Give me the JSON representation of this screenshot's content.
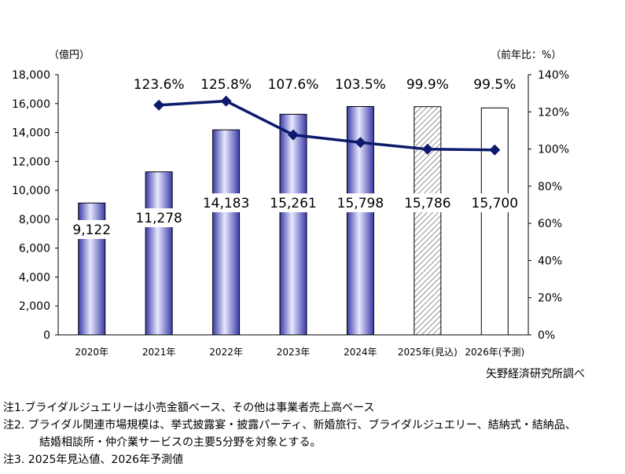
{
  "chart_data": {
    "type": "bar+line",
    "categories": [
      "2020年",
      "2021年",
      "2022年",
      "2023年",
      "2024年",
      "2025年(見込)",
      "2026年(予測)"
    ],
    "series": [
      {
        "type": "bar",
        "axis": "left",
        "values": [
          9122,
          11278,
          14183,
          15261,
          15798,
          15786,
          15700
        ],
        "labels": [
          "9,122",
          "11,278",
          "14,183",
          "15,261",
          "15,798",
          "15,786",
          "15,700"
        ],
        "styles": [
          "solid",
          "solid",
          "solid",
          "solid",
          "solid",
          "hatched",
          "hollow"
        ]
      },
      {
        "type": "line",
        "axis": "right",
        "values": [
          null,
          123.6,
          125.8,
          107.6,
          103.5,
          99.9,
          99.5
        ],
        "labels": [
          "",
          "123.6%",
          "125.8%",
          "107.6%",
          "103.5%",
          "99.9%",
          "99.5%"
        ],
        "marker": "diamond"
      }
    ],
    "y_left": {
      "unit": "（億円）",
      "range": [
        0,
        18000
      ],
      "ticks": [
        "0",
        "2,000",
        "4,000",
        "6,000",
        "8,000",
        "10,000",
        "12,000",
        "14,000",
        "16,000",
        "18,000"
      ]
    },
    "y_right": {
      "unit": "（前年比：%）",
      "range": [
        0,
        140
      ],
      "ticks": [
        "0%",
        "20%",
        "40%",
        "60%",
        "80%",
        "100%",
        "120%",
        "140%"
      ]
    },
    "source": "矢野経済研究所調べ",
    "grid": false,
    "legend": "none",
    "colors": {
      "bar_top": "#3a3aa8",
      "bar_mid": "#e8e8ff",
      "line": "#0c1a6b",
      "axis": "#000000"
    }
  },
  "notes": [
    "注1.ブライダルジュエリーは小売金額ベース、その他は事業者売上高ベース",
    "注2. ブライダル関連市場規模は、挙式披露宴・披露パーティ、新婚旅行、ブライダルジュエリー、結納式・結納品、",
    "結婚相談所・仲介業サービスの主要5分野を対象とする。",
    "注3. 2025年見込値、2026年予測値"
  ]
}
